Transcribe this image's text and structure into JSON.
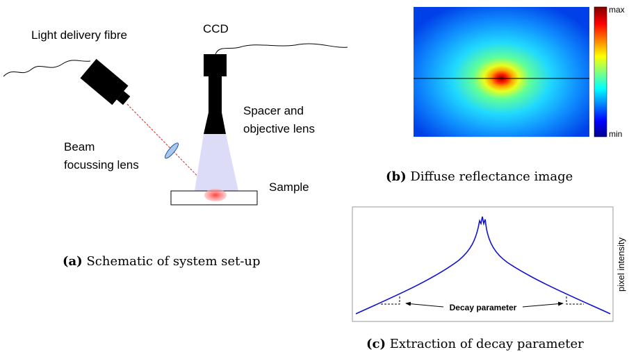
{
  "panel_a": {
    "labels": {
      "fibre": "Light delivery fibre",
      "ccd": "CCD",
      "spacer": [
        "Spacer and",
        "objective lens"
      ],
      "lens": [
        "Beam",
        "focussing lens"
      ],
      "sample": "Sample"
    },
    "caption": {
      "label": "(a)",
      "text": "Schematic of system set-up"
    }
  },
  "panel_b": {
    "colorbar": {
      "max": "max",
      "min": "min"
    },
    "caption": {
      "label": "(b)",
      "text": "Diffuse reflectance image"
    }
  },
  "panel_c": {
    "y_label": "pixel intensity",
    "annotation": "Decay parameter",
    "caption": {
      "label": "(c)",
      "text": "Extraction of decay parameter"
    }
  }
}
